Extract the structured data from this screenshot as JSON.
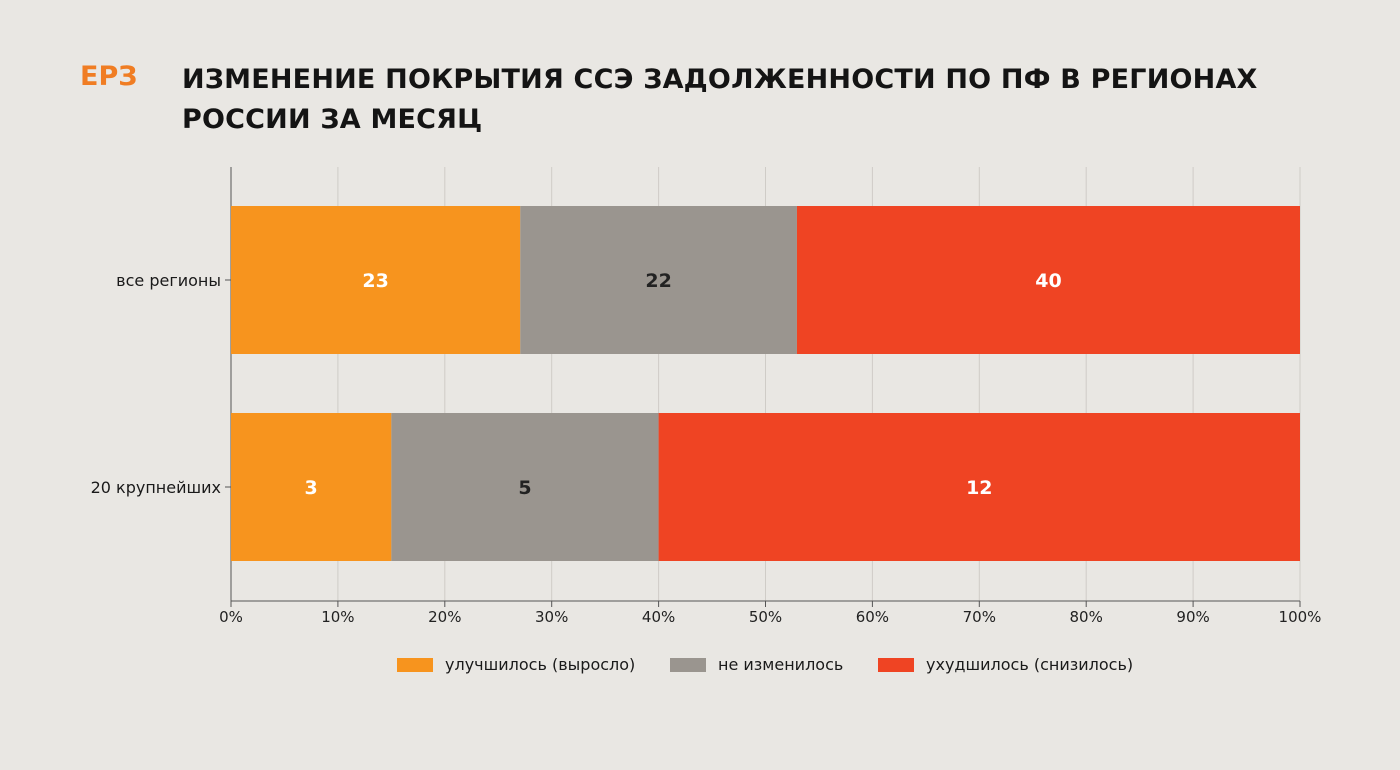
{
  "header": {
    "logo": "ЕРЗ",
    "title": "ИЗМЕНЕНИЕ ПОКРЫТИЯ ССЭ ЗАДОЛЖЕННОСТИ ПО ПФ В РЕГИОНАХ РОССИИ ЗА МЕСЯЦ"
  },
  "colors": {
    "improved": "#f7941e",
    "unchanged": "#9a958f",
    "worsened": "#ef4423",
    "grid": "#cfccc7",
    "axis": "#555555",
    "background": "#e9e7e3"
  },
  "chart_data": {
    "type": "bar",
    "orientation": "horizontal",
    "stacked": "percent",
    "title": "ИЗМЕНЕНИЕ ПОКРЫТИЯ ССЭ ЗАДОЛЖЕННОСТИ ПО ПФ В РЕГИОНАХ РОССИИ ЗА МЕСЯЦ",
    "categories": [
      "все регионы",
      "20 крупнейших"
    ],
    "series": [
      {
        "name": "улучшилось (выросло)",
        "values": [
          23,
          3
        ],
        "color": "#f7941e",
        "label_color": "#ffffff"
      },
      {
        "name": "не изменилось",
        "values": [
          22,
          5
        ],
        "color": "#9a958f",
        "label_color": "#222222"
      },
      {
        "name": "ухудшилось (снизилось)",
        "values": [
          40,
          12
        ],
        "color": "#ef4423",
        "label_color": "#ffffff"
      }
    ],
    "xlim": [
      0,
      100
    ],
    "xticks": [
      "0%",
      "10%",
      "20%",
      "30%",
      "40%",
      "50%",
      "60%",
      "70%",
      "80%",
      "90%",
      "100%"
    ],
    "xlabel": "",
    "ylabel": "",
    "grid": true,
    "legend": "bottom"
  }
}
